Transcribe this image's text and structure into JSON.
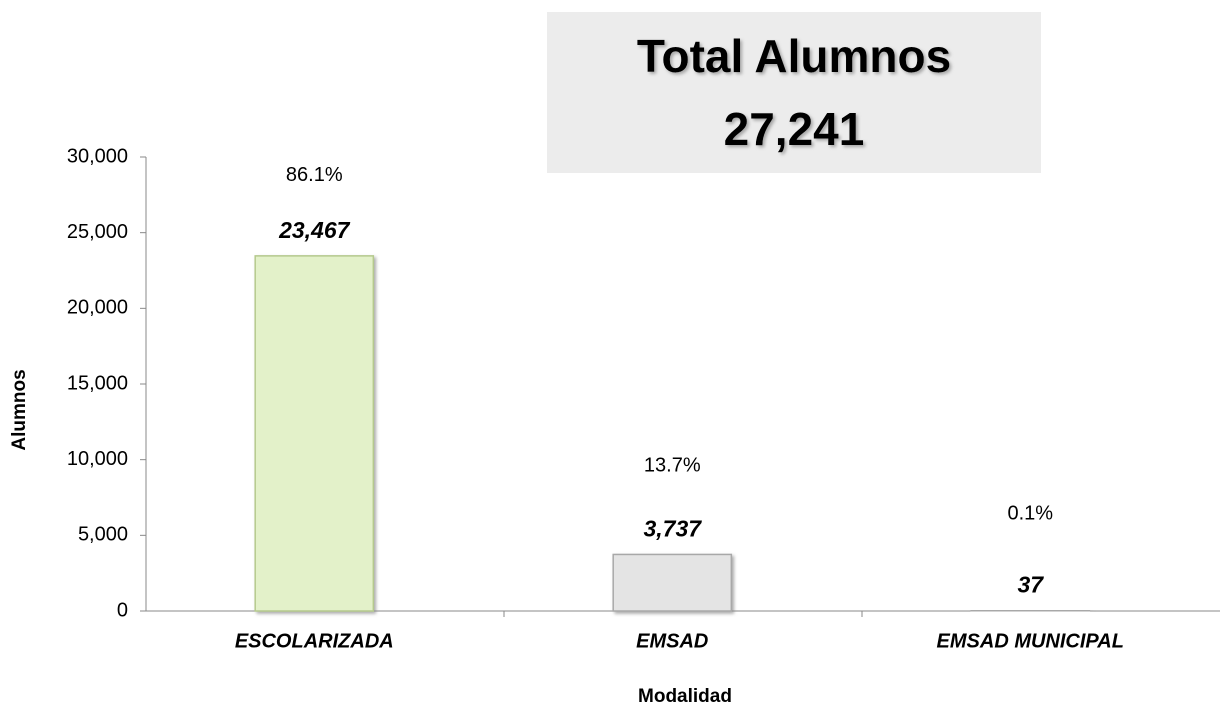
{
  "chart_data": {
    "type": "bar",
    "title": "Total Alumnos",
    "total": {
      "value": 27241,
      "label": "27,241"
    },
    "categories": [
      "ESCOLARIZADA",
      "EMSAD",
      "EMSAD MUNICIPAL"
    ],
    "values": [
      23467,
      3737,
      37
    ],
    "value_labels": [
      "23,467",
      "3,737",
      "37"
    ],
    "percent_labels": [
      "86.1%",
      "13.7%",
      "0.1%"
    ],
    "colors": [
      "#e3f1c9",
      "#e4e4e4",
      "#e4e4e4"
    ],
    "x_label": "Modalidad",
    "y_label": "Alumnos",
    "ylim": [
      0,
      30000
    ],
    "yticks": [
      0,
      {
        "value": 5000,
        "label": "5,000"
      },
      {
        "value": 10000,
        "label": "10,000"
      },
      {
        "value": 15000,
        "label": "15,000"
      },
      {
        "value": 20000,
        "label": "20,000"
      },
      {
        "value": 25000,
        "label": "25,000"
      },
      {
        "value": 30000,
        "label": "30,000"
      }
    ],
    "grid": false
  }
}
